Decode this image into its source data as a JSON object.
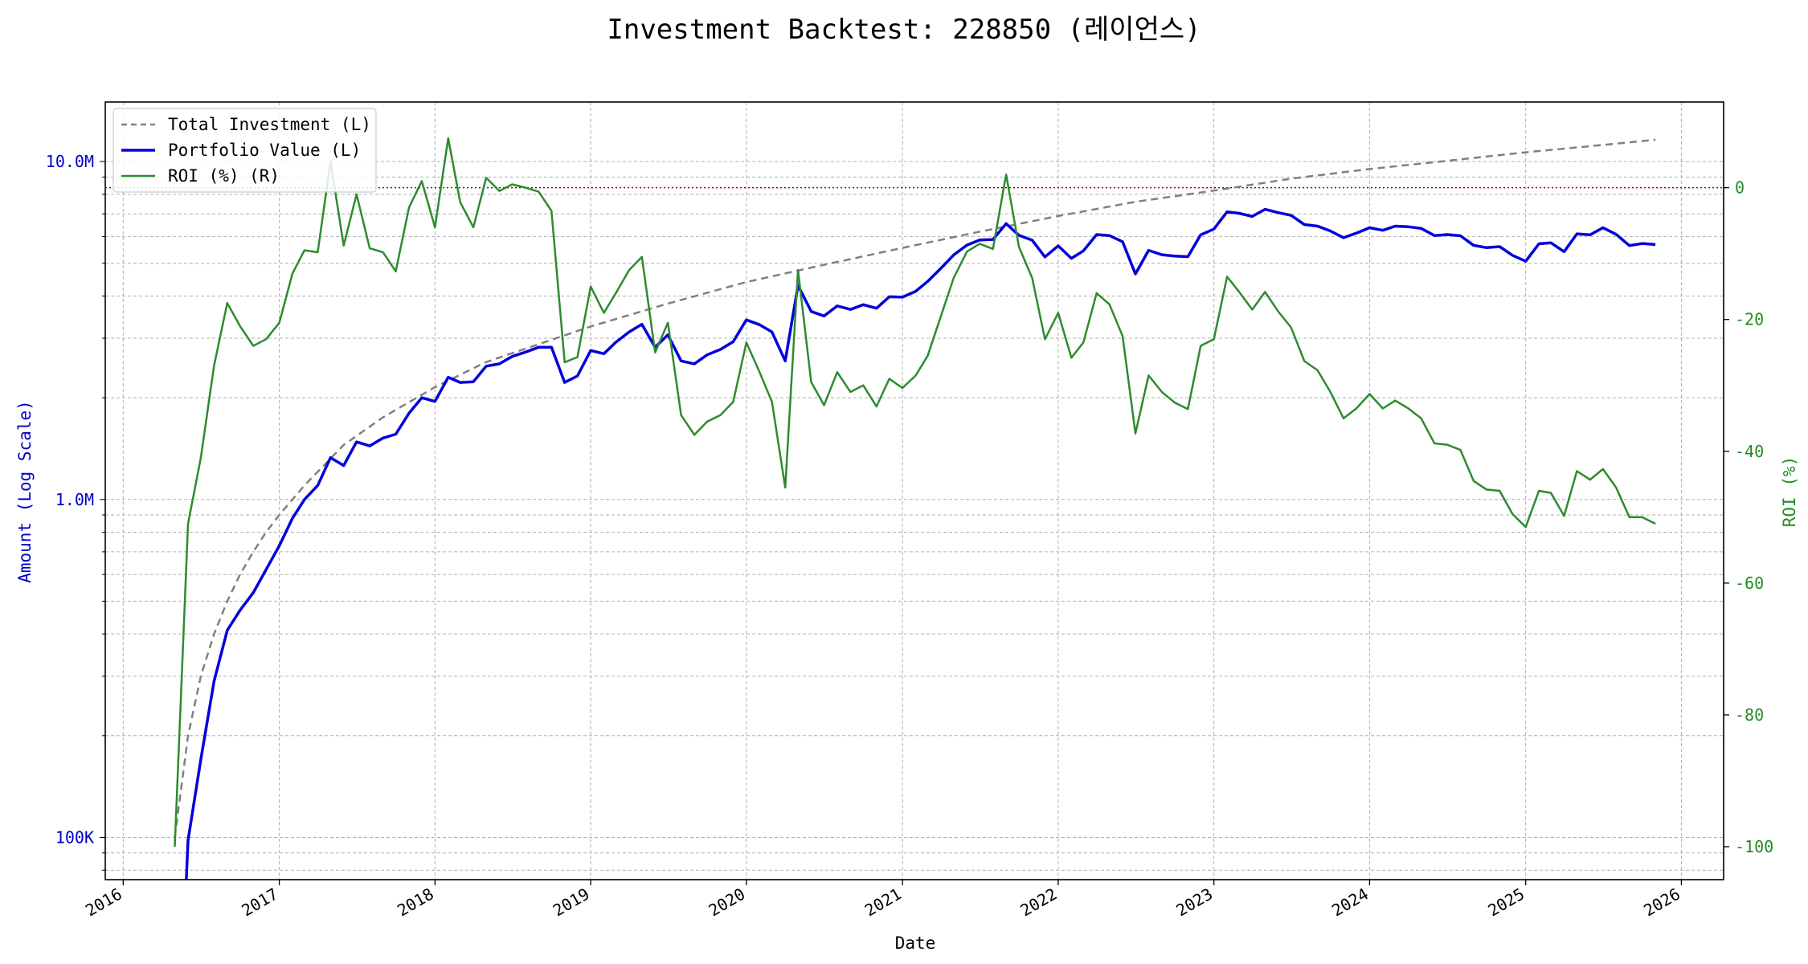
{
  "chart_data": {
    "type": "line",
    "title": "Investment Backtest: 228850 (레이언스)",
    "xlabel": "Date",
    "ylabel_left": "Amount (Log Scale)",
    "ylabel_right": "ROI (%)",
    "y_left_scale": "log",
    "x_ticks": [
      "2016",
      "2017",
      "2018",
      "2019",
      "2020",
      "2021",
      "2022",
      "2023",
      "2024",
      "2025",
      "2026"
    ],
    "y_left_ticks": [
      "100K",
      "1.0M",
      "10.0M"
    ],
    "y_right_ticks": [
      "0",
      "-20",
      "-40",
      "-60",
      "-80",
      "-100"
    ],
    "y_left_range": [
      75000,
      15000000
    ],
    "y_right_range": [
      -105,
      13
    ],
    "x_range": [
      "2015-11-20",
      "2026-04-10"
    ],
    "grid": true,
    "legend_position": "top-left",
    "zero_reference_line": {
      "axis": "right",
      "value": 0,
      "color": "#8b0000",
      "style": "dotted"
    },
    "colors": {
      "total_investment": "#808080",
      "portfolio": "#0000dd",
      "roi": "#2e8b2e",
      "left_axis": "#0000cc",
      "right_axis": "#228b22"
    },
    "series": [
      {
        "name": "Total Investment (L)",
        "axis": "left",
        "style": "dashed",
        "x": [
          "2016-05-01",
          "2016-06-01",
          "2016-07-01",
          "2016-08-01",
          "2016-09-01",
          "2016-10-01",
          "2016-11-01",
          "2016-12-01",
          "2017-01-01",
          "2017-03-01",
          "2017-06-01",
          "2017-09-01",
          "2018-01-01",
          "2018-05-01",
          "2019-01-01",
          "2019-07-01",
          "2020-01-01",
          "2020-07-01",
          "2021-01-01",
          "2021-07-01",
          "2022-01-01",
          "2022-07-01",
          "2023-01-01",
          "2023-07-01",
          "2024-01-01",
          "2024-07-01",
          "2025-01-01",
          "2025-07-01",
          "2025-11-01"
        ],
        "values": [
          100000,
          200000,
          300000,
          400000,
          500000,
          600000,
          700000,
          800000,
          900000,
          1100000,
          1450000,
          1750000,
          2150000,
          2550000,
          3250000,
          3800000,
          4400000,
          4950000,
          5550000,
          6200000,
          6900000,
          7600000,
          8200000,
          8900000,
          9500000,
          10050000,
          10650000,
          11200000,
          11600000
        ]
      },
      {
        "name": "Portfolio Value (L)",
        "axis": "left",
        "style": "solid",
        "x": [
          "2016-05-27",
          "2016-06-01",
          "2016-07-01",
          "2016-08-01",
          "2016-09-01",
          "2016-10-01",
          "2016-11-01",
          "2016-12-01",
          "2017-01-01",
          "2017-02-01",
          "2017-03-01",
          "2017-04-01",
          "2017-05-01",
          "2017-06-01",
          "2017-07-01",
          "2017-08-01",
          "2017-09-01",
          "2017-10-01",
          "2017-11-01",
          "2017-12-01",
          "2018-01-01",
          "2018-02-01",
          "2018-03-01",
          "2018-04-01",
          "2018-05-01",
          "2018-06-01",
          "2018-07-01",
          "2018-08-01",
          "2018-09-01",
          "2018-10-01",
          "2018-11-01",
          "2018-12-01",
          "2019-01-01",
          "2019-02-01",
          "2019-03-01",
          "2019-04-01",
          "2019-05-01",
          "2019-06-01",
          "2019-07-01",
          "2019-08-01",
          "2019-09-01",
          "2019-10-01",
          "2019-11-01",
          "2019-12-01",
          "2020-01-01",
          "2020-02-01",
          "2020-03-01",
          "2020-04-01",
          "2020-05-01",
          "2020-06-01",
          "2020-07-01",
          "2020-08-01",
          "2020-09-01",
          "2020-10-01",
          "2020-11-01",
          "2020-12-01",
          "2021-01-01",
          "2021-02-01",
          "2021-03-01",
          "2021-04-01",
          "2021-05-01",
          "2021-06-01",
          "2021-07-01",
          "2021-08-01",
          "2021-09-01",
          "2021-10-01",
          "2021-11-01",
          "2021-12-01",
          "2022-01-01",
          "2022-02-01",
          "2022-03-01",
          "2022-04-01",
          "2022-05-01",
          "2022-06-01",
          "2022-07-01",
          "2022-08-01",
          "2022-09-01",
          "2022-10-01",
          "2022-11-01",
          "2022-12-01",
          "2023-01-01",
          "2023-02-01",
          "2023-03-01",
          "2023-04-01",
          "2023-05-01",
          "2023-06-01",
          "2023-07-01",
          "2023-08-01",
          "2023-09-01",
          "2023-10-01",
          "2023-11-01",
          "2023-12-01",
          "2024-01-01",
          "2024-02-01",
          "2024-03-01",
          "2024-04-01",
          "2024-05-01",
          "2024-06-01",
          "2024-07-01",
          "2024-08-01",
          "2024-09-01",
          "2024-10-01",
          "2024-11-01",
          "2024-12-01",
          "2025-01-01",
          "2025-02-01",
          "2025-03-01",
          "2025-04-01",
          "2025-05-01",
          "2025-06-01",
          "2025-07-01",
          "2025-08-01",
          "2025-09-01",
          "2025-10-01",
          "2025-11-01"
        ],
        "values": [
          70000,
          98000,
          170000,
          290000,
          410000,
          470000,
          530000,
          620000,
          730000,
          880000,
          1000000,
          1100000,
          1330000,
          1260000,
          1480000,
          1440000,
          1520000,
          1560000,
          1800000,
          2000000,
          1950000,
          2300000,
          2220000,
          2230000,
          2480000,
          2520000,
          2650000,
          2730000,
          2820000,
          2820000,
          2220000,
          2320000,
          2760000,
          2700000,
          2920000,
          3130000,
          3300000,
          2820000,
          3070000,
          2570000,
          2520000,
          2680000,
          2780000,
          2930000,
          3400000,
          3290000,
          3130000,
          2570000,
          4300000,
          3600000,
          3490000,
          3740000,
          3650000,
          3770000,
          3680000,
          3980000,
          3970000,
          4130000,
          4420000,
          4830000,
          5290000,
          5660000,
          5860000,
          5880000,
          6550000,
          6050000,
          5850000,
          5220000,
          5630000,
          5170000,
          5440000,
          6080000,
          6040000,
          5790000,
          4650000,
          5460000,
          5300000,
          5250000,
          5230000,
          6070000,
          6310000,
          7100000,
          7030000,
          6880000,
          7220000,
          7060000,
          6930000,
          6510000,
          6440000,
          6230000,
          5950000,
          6140000,
          6370000,
          6260000,
          6440000,
          6410000,
          6340000,
          6040000,
          6080000,
          6030000,
          5650000,
          5560000,
          5600000,
          5280000,
          5070000,
          5710000,
          5750000,
          5410000,
          6110000,
          6070000,
          6370000,
          6090000,
          5640000,
          5720000,
          5680000
        ]
      },
      {
        "name": "ROI (%) (R)",
        "axis": "right",
        "style": "solid",
        "x": [
          "2016-05-01",
          "2016-06-01",
          "2016-07-01",
          "2016-08-01",
          "2016-09-01",
          "2016-10-01",
          "2016-11-01",
          "2016-12-01",
          "2017-01-01",
          "2017-02-01",
          "2017-03-01",
          "2017-04-01",
          "2017-05-01",
          "2017-06-01",
          "2017-07-01",
          "2017-08-01",
          "2017-09-01",
          "2017-10-01",
          "2017-11-01",
          "2017-12-01",
          "2018-01-01",
          "2018-02-01",
          "2018-03-01",
          "2018-04-01",
          "2018-05-01",
          "2018-06-01",
          "2018-07-01",
          "2018-08-01",
          "2018-09-01",
          "2018-10-01",
          "2018-11-01",
          "2018-12-01",
          "2019-01-01",
          "2019-02-01",
          "2019-03-01",
          "2019-04-01",
          "2019-05-01",
          "2019-06-01",
          "2019-07-01",
          "2019-08-01",
          "2019-09-01",
          "2019-10-01",
          "2019-11-01",
          "2019-12-01",
          "2020-01-01",
          "2020-02-01",
          "2020-03-01",
          "2020-04-01",
          "2020-05-01",
          "2020-06-01",
          "2020-07-01",
          "2020-08-01",
          "2020-09-01",
          "2020-10-01",
          "2020-11-01",
          "2020-12-01",
          "2021-01-01",
          "2021-02-01",
          "2021-03-01",
          "2021-04-01",
          "2021-05-01",
          "2021-06-01",
          "2021-07-01",
          "2021-08-01",
          "2021-09-01",
          "2021-10-01",
          "2021-11-01",
          "2021-12-01",
          "2022-01-01",
          "2022-02-01",
          "2022-03-01",
          "2022-04-01",
          "2022-05-01",
          "2022-06-01",
          "2022-07-01",
          "2022-08-01",
          "2022-09-01",
          "2022-10-01",
          "2022-11-01",
          "2022-12-01",
          "2023-01-01",
          "2023-02-01",
          "2023-03-01",
          "2023-04-01",
          "2023-05-01",
          "2023-06-01",
          "2023-07-01",
          "2023-08-01",
          "2023-09-01",
          "2023-10-01",
          "2023-11-01",
          "2023-12-01",
          "2024-01-01",
          "2024-02-01",
          "2024-03-01",
          "2024-04-01",
          "2024-05-01",
          "2024-06-01",
          "2024-07-01",
          "2024-08-01",
          "2024-09-01",
          "2024-10-01",
          "2024-11-01",
          "2024-12-01",
          "2025-01-01",
          "2025-02-01",
          "2025-03-01",
          "2025-04-01",
          "2025-05-01",
          "2025-06-01",
          "2025-07-01",
          "2025-08-01",
          "2025-09-01",
          "2025-10-01",
          "2025-11-01"
        ],
        "values": [
          -100,
          -51,
          -41,
          -27,
          -17.5,
          -21,
          -24,
          -23,
          -20.5,
          -13,
          -9.5,
          -9.8,
          4,
          -8.8,
          -1,
          -9.2,
          -9.8,
          -12.7,
          -3,
          1,
          -6,
          7.5,
          -2.2,
          -6,
          1.5,
          -0.5,
          0.5,
          0,
          -0.6,
          -3.5,
          -26.5,
          -25.7,
          -15,
          -19,
          -16,
          -12.5,
          -10.5,
          -25,
          -20.5,
          -34.5,
          -37.5,
          -35.5,
          -34.5,
          -32.5,
          -23.5,
          -28,
          -32.5,
          -45.5,
          -12.5,
          -29.5,
          -33,
          -28,
          -31,
          -30,
          -33.2,
          -29,
          -30.4,
          -28.5,
          -25.5,
          -19.5,
          -13.7,
          -9.7,
          -8.5,
          -9.3,
          2,
          -9,
          -13.7,
          -23,
          -19,
          -25.8,
          -23.5,
          -16,
          -17.7,
          -22.5,
          -37.3,
          -28.5,
          -31,
          -32.6,
          -33.6,
          -24,
          -23,
          -13.5,
          -15.8,
          -18.5,
          -15.8,
          -18.8,
          -21.2,
          -26.3,
          -27.7,
          -31,
          -35,
          -33.5,
          -31.3,
          -33.5,
          -32.3,
          -33.5,
          -35,
          -38.8,
          -39,
          -39.8,
          -44.5,
          -45.8,
          -46,
          -49.5,
          -51.5,
          -46,
          -46.3,
          -49.8,
          -43,
          -44.3,
          -42.7,
          -45.5,
          -50,
          -50,
          -51
        ]
      }
    ]
  }
}
